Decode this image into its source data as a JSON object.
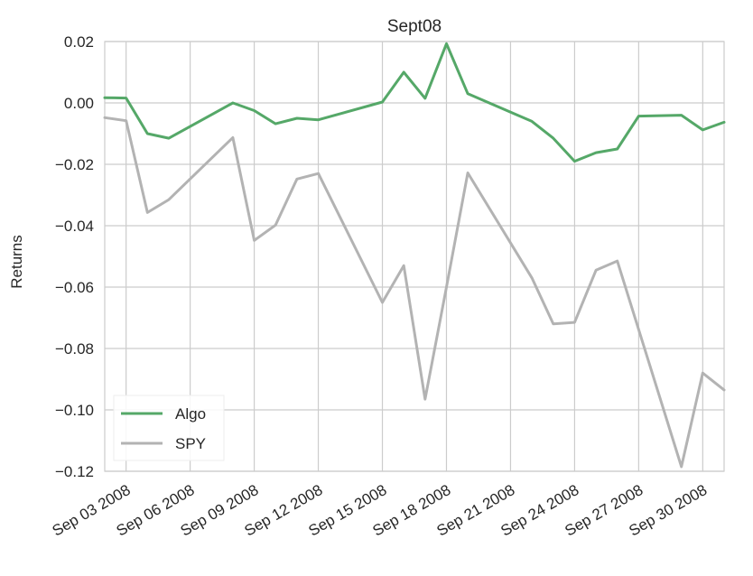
{
  "chart_data": {
    "type": "line",
    "title": "Sept08",
    "xlabel": "",
    "ylabel": "Returns",
    "ylim": [
      -0.12,
      0.02
    ],
    "xlim": [
      "2008-09-02",
      "2008-10-01"
    ],
    "grid": true,
    "legend_position": "lower-left",
    "y_ticks": [
      {
        "value": 0.02,
        "label": "0.02"
      },
      {
        "value": 0.0,
        "label": "0.00"
      },
      {
        "value": -0.02,
        "label": "−0.02"
      },
      {
        "value": -0.04,
        "label": "−0.04"
      },
      {
        "value": -0.06,
        "label": "−0.06"
      },
      {
        "value": -0.08,
        "label": "−0.08"
      },
      {
        "value": -0.1,
        "label": "−0.10"
      },
      {
        "value": -0.12,
        "label": "−0.12"
      }
    ],
    "x_ticks": [
      {
        "value": "2008-09-03",
        "label": "Sep 03 2008"
      },
      {
        "value": "2008-09-06",
        "label": "Sep 06 2008"
      },
      {
        "value": "2008-09-09",
        "label": "Sep 09 2008"
      },
      {
        "value": "2008-09-12",
        "label": "Sep 12 2008"
      },
      {
        "value": "2008-09-15",
        "label": "Sep 15 2008"
      },
      {
        "value": "2008-09-18",
        "label": "Sep 18 2008"
      },
      {
        "value": "2008-09-21",
        "label": "Sep 21 2008"
      },
      {
        "value": "2008-09-24",
        "label": "Sep 24 2008"
      },
      {
        "value": "2008-09-27",
        "label": "Sep 27 2008"
      },
      {
        "value": "2008-09-30",
        "label": "Sep 30 2008"
      }
    ],
    "series": [
      {
        "name": "Algo",
        "color": "#55a868",
        "points": [
          {
            "x": "2008-09-02",
            "y": 0.0017
          },
          {
            "x": "2008-09-03",
            "y": 0.0016
          },
          {
            "x": "2008-09-04",
            "y": -0.01
          },
          {
            "x": "2008-09-05",
            "y": -0.0115
          },
          {
            "x": "2008-09-08",
            "y": 0.0
          },
          {
            "x": "2008-09-09",
            "y": -0.0025
          },
          {
            "x": "2008-09-10",
            "y": -0.0068
          },
          {
            "x": "2008-09-11",
            "y": -0.005
          },
          {
            "x": "2008-09-12",
            "y": -0.0055
          },
          {
            "x": "2008-09-15",
            "y": 0.0003
          },
          {
            "x": "2008-09-16",
            "y": 0.01
          },
          {
            "x": "2008-09-17",
            "y": 0.0015
          },
          {
            "x": "2008-09-18",
            "y": 0.0193
          },
          {
            "x": "2008-09-19",
            "y": 0.003
          },
          {
            "x": "2008-09-22",
            "y": -0.006
          },
          {
            "x": "2008-09-23",
            "y": -0.0115
          },
          {
            "x": "2008-09-24",
            "y": -0.019
          },
          {
            "x": "2008-09-25",
            "y": -0.0162
          },
          {
            "x": "2008-09-26",
            "y": -0.015
          },
          {
            "x": "2008-09-27",
            "y": -0.0043
          },
          {
            "x": "2008-09-29",
            "y": -0.004
          },
          {
            "x": "2008-09-30",
            "y": -0.0088
          },
          {
            "x": "2008-10-01",
            "y": -0.0063
          }
        ]
      },
      {
        "name": "SPY",
        "color": "#b3b3b3",
        "points": [
          {
            "x": "2008-09-02",
            "y": -0.0048
          },
          {
            "x": "2008-09-03",
            "y": -0.0058
          },
          {
            "x": "2008-09-04",
            "y": -0.0357
          },
          {
            "x": "2008-09-05",
            "y": -0.0315
          },
          {
            "x": "2008-09-08",
            "y": -0.0113
          },
          {
            "x": "2008-09-09",
            "y": -0.0448
          },
          {
            "x": "2008-09-10",
            "y": -0.0398
          },
          {
            "x": "2008-09-11",
            "y": -0.0248
          },
          {
            "x": "2008-09-12",
            "y": -0.023
          },
          {
            "x": "2008-09-15",
            "y": -0.065
          },
          {
            "x": "2008-09-16",
            "y": -0.053
          },
          {
            "x": "2008-09-17",
            "y": -0.0965
          },
          {
            "x": "2008-09-18",
            "y": -0.06
          },
          {
            "x": "2008-09-19",
            "y": -0.0228
          },
          {
            "x": "2008-09-22",
            "y": -0.057
          },
          {
            "x": "2008-09-23",
            "y": -0.072
          },
          {
            "x": "2008-09-24",
            "y": -0.0715
          },
          {
            "x": "2008-09-25",
            "y": -0.0545
          },
          {
            "x": "2008-09-26",
            "y": -0.0515
          },
          {
            "x": "2008-09-29",
            "y": -0.1185
          },
          {
            "x": "2008-09-30",
            "y": -0.088
          },
          {
            "x": "2008-10-01",
            "y": -0.0935
          }
        ]
      }
    ]
  }
}
